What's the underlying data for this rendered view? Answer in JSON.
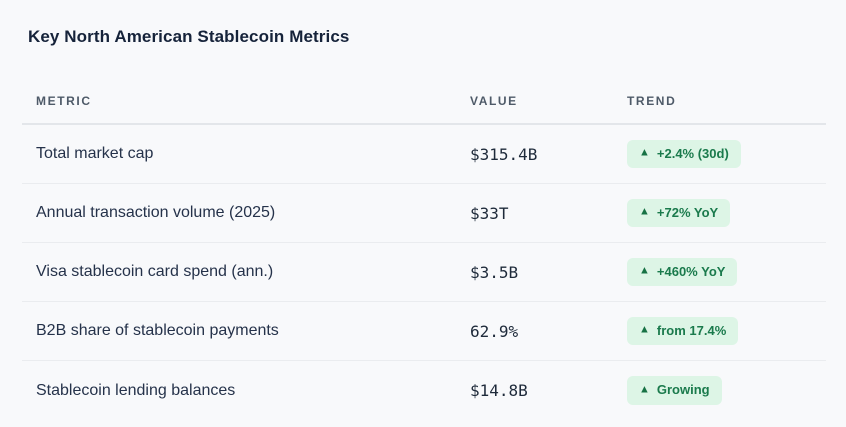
{
  "title": "Key North American Stablecoin Metrics",
  "table": {
    "columns": [
      {
        "label": "METRIC"
      },
      {
        "label": "VALUE"
      },
      {
        "label": "TREND"
      }
    ],
    "rows": [
      {
        "metric": "Total market cap",
        "value": "$315.4B",
        "trend": "+2.4% (30d)"
      },
      {
        "metric": "Annual transaction volume (2025)",
        "value": "$33T",
        "trend": "+72% YoY"
      },
      {
        "metric": "Visa stablecoin card spend (ann.)",
        "value": "$3.5B",
        "trend": "+460% YoY"
      },
      {
        "metric": "B2B share of stablecoin payments",
        "value": "62.9%",
        "trend": "from 17.4%"
      },
      {
        "metric": "Stablecoin lending balances",
        "value": "$14.8B",
        "trend": "Growing"
      }
    ]
  },
  "icons": {
    "trend_up": "▲"
  },
  "colors": {
    "page_background": "#f8f9fb",
    "title_text": "#16233a",
    "header_text": "#4e5a68",
    "row_text": "#25324a",
    "value_text": "#1e2a3a",
    "badge_background": "#ddf5e6",
    "badge_text": "#1a7a4c",
    "divider": "#eaecef"
  }
}
